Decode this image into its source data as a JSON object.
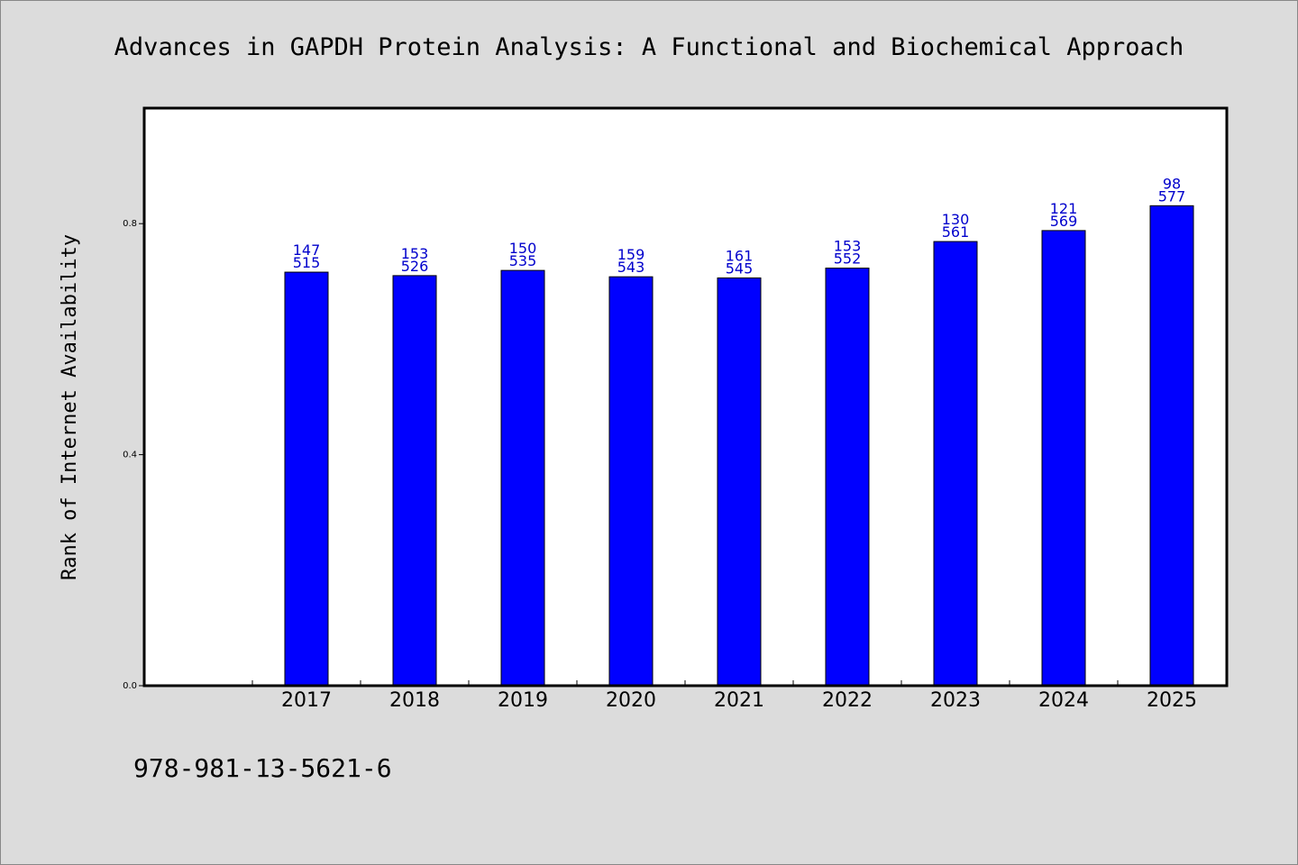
{
  "chart_data": {
    "type": "bar",
    "title": "Advances in GAPDH Protein Analysis: A Functional and Biochemical Approach",
    "xlabel": "",
    "ylabel": "Rank of Internet Availability",
    "categories": [
      "2017",
      "2018",
      "2019",
      "2020",
      "2021",
      "2022",
      "2023",
      "2024",
      "2025"
    ],
    "values": [
      0.716,
      0.71,
      0.719,
      0.708,
      0.706,
      0.723,
      0.769,
      0.788,
      0.831
    ],
    "data_labels_top": [
      "147",
      "153",
      "150",
      "159",
      "161",
      "153",
      "130",
      "121",
      "98"
    ],
    "data_labels_bottom": [
      "515",
      "526",
      "535",
      "543",
      "545",
      "552",
      "561",
      "569",
      "577"
    ],
    "ylim": [
      0,
      1.0
    ],
    "yticks": [
      "0.0",
      "0.4",
      "0.8"
    ],
    "ytick_values": [
      0,
      0.4,
      0.8
    ],
    "grid": false,
    "bar_color": "#0000ff",
    "label_color": "#0000cc"
  },
  "footer": {
    "isbn": "978-981-13-5621-6"
  }
}
